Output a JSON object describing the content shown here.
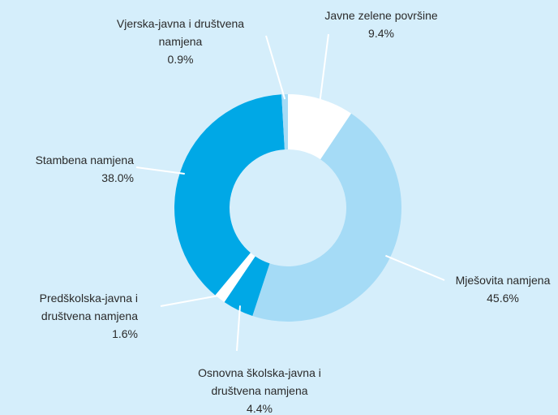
{
  "chart_data": {
    "type": "donut",
    "categories": [
      "Javne zelene površine",
      "Mješovita namjena",
      "Osnovna školska-javna i društvena namjena",
      "Predškolska-javna i društvena namjena",
      "Stambena namjena",
      "Vjerska-javna i društvena namjena"
    ],
    "values": [
      9.4,
      45.6,
      4.4,
      1.6,
      38.0,
      0.9
    ],
    "value_labels": [
      "9.4%",
      "45.6%",
      "4.4%",
      "1.6%",
      "38.0%",
      "0.9%"
    ],
    "colors": [
      "#ffffff",
      "#a5dbf6",
      "#00a8e6",
      "#ffffff",
      "#00a8e6",
      "#a5dbf6"
    ]
  }
}
